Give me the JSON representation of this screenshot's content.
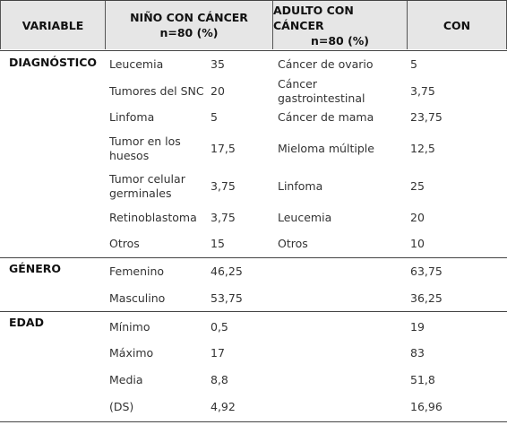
{
  "header": [
    "VARIABLE",
    [
      "NIÑO CON CÁNCER",
      "n=80 (%)"
    ],
    [
      "ADULTO CON CÁNCER",
      "n=80 (%)"
    ],
    "CON"
  ],
  "sections": [
    {
      "name": "DIAGNÓSTICO",
      "rows": [
        {
          "child_label": "Leucemia",
          "child_value": "35",
          "adult_label": "Cáncer de ovario",
          "adult_value": "5"
        },
        {
          "child_label": "Tumores del SNC",
          "child_value": "20",
          "adult_label": "Cáncer gastrointestinal",
          "adult_value": "3,75"
        },
        {
          "child_label": "Linfoma",
          "child_value": "5",
          "adult_label": "Cáncer de mama",
          "adult_value": "23,75"
        },
        {
          "child_label": "Tumor en los huesos",
          "child_value": "17,5",
          "adult_label": "Mieloma múltiple",
          "adult_value": "12,5"
        },
        {
          "child_label": "Tumor celular germinales",
          "child_value": "3,75",
          "adult_label": "Linfoma",
          "adult_value": "25"
        },
        {
          "child_label": "Retinoblastoma",
          "child_value": "3,75",
          "adult_label": "Leucemia",
          "adult_value": "20"
        },
        {
          "child_label": "Otros",
          "child_value": "15",
          "adult_label": "Otros",
          "adult_value": "10"
        }
      ]
    },
    {
      "name": "GÉNERO",
      "rows": [
        {
          "child_label": "Femenino",
          "child_value": "46,25",
          "adult_value": "63,75"
        },
        {
          "child_label": "Masculino",
          "child_value": "53,75",
          "adult_value": "36,25"
        }
      ]
    },
    {
      "name": "EDAD",
      "rows": [
        {
          "child_label": "Mínimo",
          "child_value": "0,5",
          "adult_value": "19"
        },
        {
          "child_label": "Máximo",
          "child_value": "17",
          "adult_value": "83"
        },
        {
          "child_label": "Media",
          "child_value": "8,8",
          "adult_value": "51,8"
        },
        {
          "child_label": "(DS)",
          "child_value": "4,92",
          "adult_value": "16,96"
        }
      ]
    }
  ]
}
